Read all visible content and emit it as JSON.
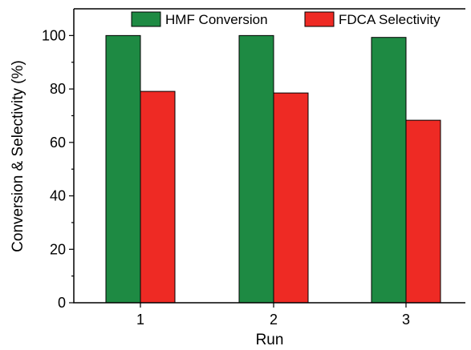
{
  "chart_data": {
    "type": "bar",
    "title": "",
    "xlabel": "Run",
    "ylabel": "Conversion & Selectivity (%)",
    "categories": [
      "1",
      "2",
      "3"
    ],
    "series": [
      {
        "name": "HMF Conversion",
        "values": [
          100,
          100,
          99.3
        ],
        "color": "#1e8a43"
      },
      {
        "name": "FDCA Selectivity",
        "values": [
          79.1,
          78.5,
          68.3
        ],
        "color": "#ee2a24"
      }
    ],
    "ylim": [
      0,
      110
    ],
    "yticks": [
      0,
      20,
      40,
      60,
      80,
      100
    ],
    "grid": false,
    "legend_position": "top"
  }
}
